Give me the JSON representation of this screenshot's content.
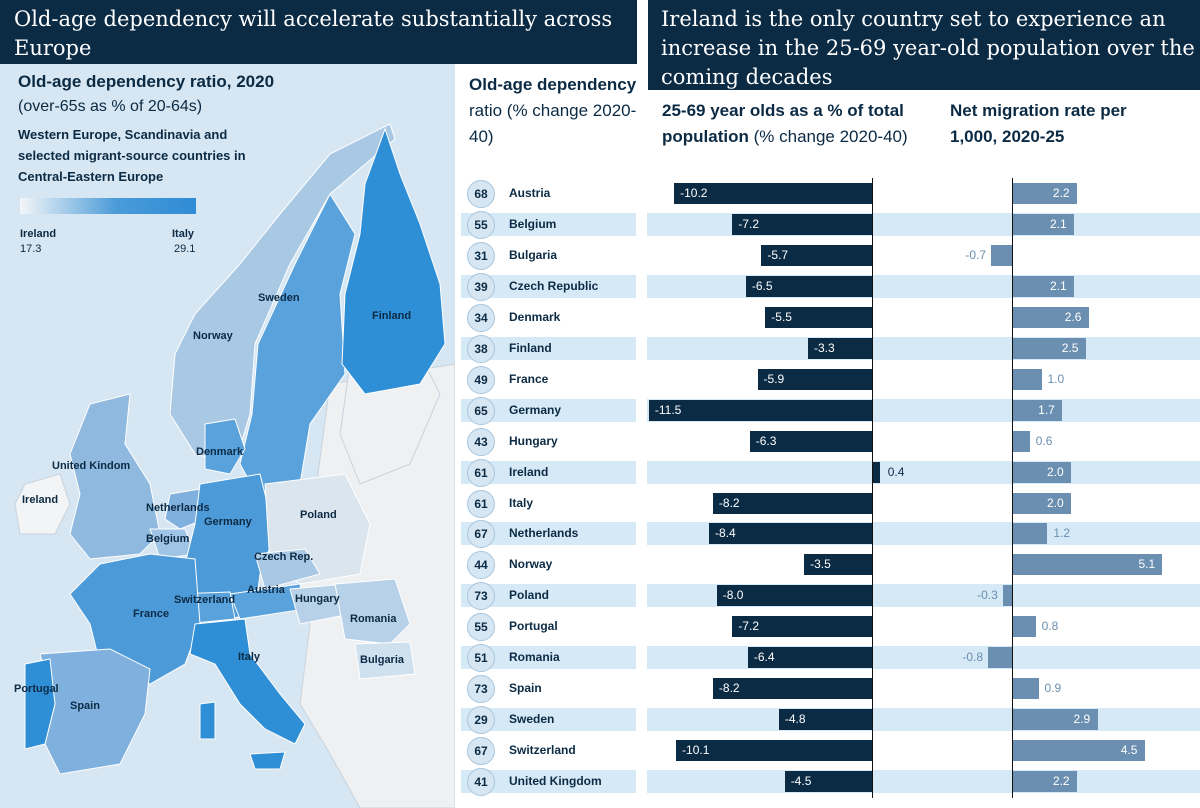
{
  "left_title": "Old-age dependency will accelerate substantially across Europe",
  "right_title": "Ireland is the only country set to experience an increase in the 25-69 year-old population over the coming decades",
  "map": {
    "title": "Old-age dependency ratio, 2020",
    "subtitle": "(over-65s as % of 20-64s)",
    "description": "Western Europe, Scandinavia and selected migrant-source countries in Central-Eastern Europe",
    "scale_min_label": "Ireland",
    "scale_min_value": "17.3",
    "scale_max_label": "Italy",
    "scale_max_value": "29.1",
    "colors": {
      "low": "#f4f6f8",
      "mid": "#a7c7e7",
      "high": "#2f8cd6",
      "nonincluded": "#e9ecef"
    },
    "labels": [
      "Sweden",
      "Finland",
      "Norway",
      "Denmark",
      "United Kindom",
      "Ireland",
      "Netherlands",
      "Germany",
      "Belgium",
      "Poland",
      "Czech Rep.",
      "Switzerland",
      "Austria",
      "Hungary",
      "France",
      "Romania",
      "Italy",
      "Bulgaria",
      "Portugal",
      "Spain"
    ]
  },
  "columns": {
    "dependency": "Old-age dependency ratio (% change 2020-40)",
    "dependency_bold": "Old-age dependency",
    "dependency_normal": "ratio (% change 2020-40)",
    "workforce_bold": "25-69 year olds as a % of total population",
    "workforce_normal": "(% change 2020-40)",
    "migration": "Net migration rate per 1,000, 2020-25"
  },
  "chart_data": {
    "type": "bar",
    "title": "Ireland is the only country set to experience an increase in the 25-69 year-old population over the coming decades",
    "categories": [
      "Austria",
      "Belgium",
      "Bulgaria",
      "Czech Republic",
      "Denmark",
      "Finland",
      "France",
      "Germany",
      "Hungary",
      "Ireland",
      "Italy",
      "Netherlands",
      "Norway",
      "Poland",
      "Portugal",
      "Romania",
      "Spain",
      "Sweden",
      "Switzerland",
      "United Kingdom"
    ],
    "series": [
      {
        "name": "Old-age dependency ratio (% change 2020-40)",
        "values": [
          68,
          55,
          31,
          39,
          34,
          38,
          49,
          65,
          43,
          61,
          61,
          67,
          44,
          73,
          55,
          51,
          73,
          29,
          67,
          41
        ]
      },
      {
        "name": "25-69 year olds as a % of total population (% change 2020-40)",
        "values": [
          -10.2,
          -7.2,
          -5.7,
          -6.5,
          -5.5,
          -3.3,
          -5.9,
          -11.5,
          -6.3,
          0.4,
          -8.2,
          -8.4,
          -3.5,
          -8.0,
          -7.2,
          -6.4,
          -8.2,
          -4.8,
          -10.1,
          -4.5
        ],
        "labels": [
          "-10.2",
          "-7.2",
          "-5.7",
          "-6.5",
          "-5.5",
          "-3.3",
          "-5.9",
          "-11.5",
          "-6.3",
          "0.4",
          "-8.2",
          "-8.4",
          "-3.5",
          "-8.0",
          "-7.2",
          "-6.4",
          "-8.2",
          "-4.8",
          "-10.1",
          "-4.5"
        ],
        "color": "#0b2a44"
      },
      {
        "name": "Net migration rate per 1,000, 2020-25",
        "values": [
          2.2,
          2.1,
          -0.7,
          2.1,
          2.6,
          2.5,
          1.0,
          1.7,
          0.6,
          2.0,
          2.0,
          1.2,
          5.1,
          -0.3,
          0.8,
          -0.8,
          0.9,
          2.9,
          4.5,
          2.2
        ],
        "labels": [
          "2.2",
          "2.1",
          "-0.7",
          "2.1",
          "2.6",
          "2.5",
          "1.0",
          "1.7",
          "0.6",
          "2.0",
          "2.0",
          "1.2",
          "5.1",
          "-0.3",
          "0.8",
          "-0.8",
          "0.9",
          "2.9",
          "4.5",
          "2.2"
        ],
        "color": "#6b8fb0"
      }
    ],
    "xlim_workforce": [
      -11.5,
      0.4
    ],
    "xlim_migration": [
      -0.8,
      5.1
    ],
    "colors": {
      "band": "#d6e9f7",
      "axis": "#111111"
    }
  }
}
